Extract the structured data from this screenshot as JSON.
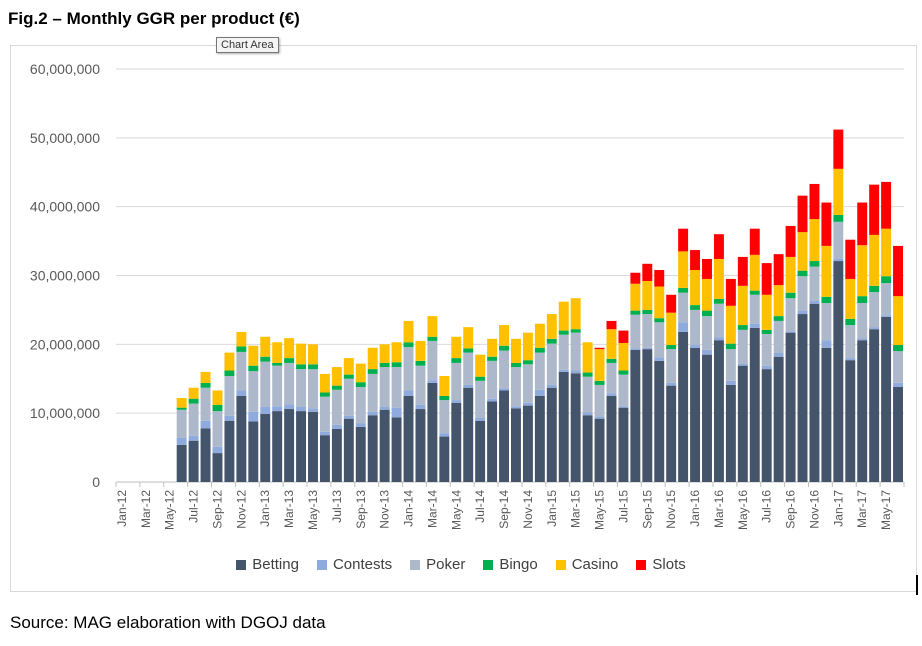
{
  "title": "Fig.2 – Monthly GGR per product (€)",
  "tooltip": "Chart Area",
  "source": "Source: MAG elaboration with DGOJ data",
  "chart_data": {
    "type": "bar",
    "stacked": true,
    "first_month": "Jan-12",
    "x_tick_labels": [
      "Jan-12",
      "Mar-12",
      "May-12",
      "Jul-12",
      "Sep-12",
      "Nov-12",
      "Jan-13",
      "Mar-13",
      "May-13",
      "Jul-13",
      "Sep-13",
      "Nov-13",
      "Jan-14",
      "Mar-14",
      "May-14",
      "Jul-14",
      "Sep-14",
      "Nov-14",
      "Jan-15",
      "Mar-15",
      "May-15",
      "Jul-15",
      "Sep-15",
      "Nov-15",
      "Jan-16",
      "Mar-16",
      "May-16",
      "Jul-16",
      "Sep-16",
      "Nov-16",
      "Jan-17",
      "Mar-17",
      "May-17"
    ],
    "y_tick_labels": [
      "0",
      "10,000,000",
      "20,000,000",
      "30,000,000",
      "40,000,000",
      "50,000,000",
      "60,000,000"
    ],
    "ylim": [
      0,
      60000000
    ],
    "grid": true,
    "legend_position": "bottom",
    "series": [
      {
        "name": "Betting",
        "color": "#44546a",
        "values": [
          0,
          0,
          0,
          0,
          0,
          5400000,
          6000000,
          7800000,
          4200000,
          8900000,
          12500000,
          8800000,
          9900000,
          10300000,
          10600000,
          10300000,
          10200000,
          6800000,
          7700000,
          9200000,
          8000000,
          9700000,
          10500000,
          9400000,
          12500000,
          10600000,
          14400000,
          6600000,
          11500000,
          13700000,
          8900000,
          11700000,
          13300000,
          10700000,
          11100000,
          12500000,
          13700000,
          16000000,
          15800000,
          9700000,
          9200000,
          12500000,
          10800000,
          19200000,
          19300000,
          17600000,
          14000000,
          21800000,
          19500000,
          18500000,
          20600000,
          14100000,
          16900000,
          22400000,
          16400000,
          18200000,
          21700000,
          24400000,
          25900000,
          19500000,
          32100000,
          17700000,
          20600000,
          22200000,
          24000000,
          13800000
        ]
      },
      {
        "name": "Contests",
        "color": "#8faadc",
        "values": [
          0,
          0,
          0,
          0,
          0,
          1000000,
          700000,
          1100000,
          900000,
          700000,
          800000,
          1400000,
          1000000,
          700000,
          700000,
          600000,
          500000,
          500000,
          600000,
          400000,
          500000,
          500000,
          400000,
          1400000,
          800000,
          600000,
          400000,
          500000,
          400000,
          400000,
          400000,
          400000,
          300000,
          300000,
          400000,
          900000,
          400000,
          300000,
          400000,
          400000,
          300000,
          400000,
          200000,
          200000,
          200000,
          500000,
          400000,
          1400000,
          400000,
          700000,
          400000,
          600000,
          300000,
          600000,
          500000,
          600000,
          200000,
          500000,
          400000,
          1100000,
          300000,
          300000,
          300000,
          300000,
          200000,
          600000
        ]
      },
      {
        "name": "Poker",
        "color": "#adb9ca",
        "values": [
          0,
          0,
          0,
          0,
          0,
          4100000,
          4700000,
          4800000,
          5200000,
          5800000,
          5600000,
          5900000,
          6600000,
          5900000,
          6000000,
          5500000,
          5700000,
          5100000,
          5100000,
          5400000,
          5300000,
          5500000,
          5800000,
          5900000,
          6300000,
          5700000,
          5700000,
          4800000,
          5400000,
          4700000,
          5400000,
          5500000,
          5500000,
          5700000,
          5600000,
          5400000,
          6000000,
          5100000,
          5500000,
          5200000,
          4600000,
          4400000,
          4600000,
          4900000,
          4900000,
          5100000,
          4900000,
          4300000,
          5100000,
          4900000,
          4900000,
          4600000,
          4900000,
          4200000,
          4600000,
          4600000,
          4800000,
          5000000,
          5000000,
          5400000,
          5400000,
          4800000,
          5100000,
          5100000,
          4700000,
          4600000
        ]
      },
      {
        "name": "Bingo",
        "color": "#00b050",
        "values": [
          0,
          0,
          0,
          0,
          0,
          300000,
          700000,
          700000,
          900000,
          800000,
          800000,
          800000,
          700000,
          400000,
          700000,
          700000,
          700000,
          600000,
          600000,
          600000,
          700000,
          700000,
          600000,
          700000,
          700000,
          700000,
          600000,
          600000,
          700000,
          600000,
          600000,
          600000,
          700000,
          600000,
          600000,
          700000,
          700000,
          600000,
          500000,
          600000,
          600000,
          600000,
          600000,
          600000,
          600000,
          600000,
          600000,
          700000,
          700000,
          800000,
          700000,
          800000,
          700000,
          600000,
          600000,
          700000,
          800000,
          800000,
          800000,
          900000,
          1000000,
          900000,
          1000000,
          900000,
          1000000,
          900000
        ]
      },
      {
        "name": "Casino",
        "color": "#ffc000",
        "values": [
          0,
          0,
          0,
          0,
          0,
          1400000,
          1600000,
          1600000,
          2100000,
          2600000,
          2100000,
          2900000,
          2900000,
          3000000,
          2900000,
          3000000,
          2900000,
          2700000,
          2700000,
          2400000,
          2700000,
          3100000,
          2700000,
          2900000,
          3100000,
          2900000,
          3000000,
          2900000,
          3100000,
          3100000,
          3200000,
          2600000,
          3000000,
          3500000,
          4000000,
          3500000,
          3600000,
          4200000,
          4500000,
          4400000,
          4600000,
          4300000,
          4000000,
          3900000,
          4200000,
          4600000,
          4700000,
          5300000,
          5100000,
          4600000,
          5800000,
          5500000,
          5700000,
          5200000,
          5100000,
          4500000,
          5200000,
          5600000,
          6100000,
          7400000,
          6700000,
          5800000,
          7400000,
          7400000,
          6900000,
          7100000
        ]
      },
      {
        "name": "Slots",
        "color": "#ff0000",
        "values": [
          0,
          0,
          0,
          0,
          0,
          0,
          0,
          0,
          0,
          0,
          0,
          0,
          0,
          0,
          0,
          0,
          0,
          0,
          0,
          0,
          0,
          0,
          0,
          0,
          0,
          0,
          0,
          0,
          0,
          0,
          0,
          0,
          0,
          0,
          0,
          0,
          0,
          0,
          0,
          0,
          200000,
          1200000,
          1800000,
          1600000,
          2500000,
          2400000,
          2600000,
          3300000,
          2900000,
          2900000,
          3600000,
          3900000,
          4200000,
          3800000,
          4600000,
          4500000,
          4500000,
          5300000,
          5100000,
          6300000,
          5700000,
          5700000,
          6200000,
          7300000,
          6800000,
          7300000
        ]
      }
    ]
  }
}
